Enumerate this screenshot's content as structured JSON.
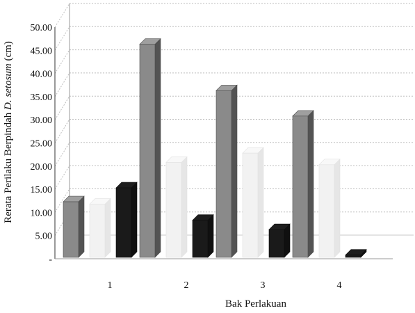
{
  "chart_data": {
    "type": "bar",
    "title": "",
    "xlabel": "Bak Perlakuan",
    "ylabel": {
      "prefix": "Rerata Perilaku Berpindah ",
      "species": "D. setosum",
      "suffix": " (cm)"
    },
    "categories": [
      "1",
      "2",
      "3",
      "4"
    ],
    "ylim": [
      0,
      50
    ],
    "yticks": [
      0,
      5,
      10,
      15,
      20,
      25,
      30,
      35,
      40,
      45,
      50
    ],
    "ytick_labels": [
      "-",
      "5.00",
      "10.00",
      "15.00",
      "20.00",
      "25.00",
      "30.00",
      "35.00",
      "40.00",
      "45.00",
      "50.00"
    ],
    "grid": true,
    "legend": "none",
    "series": [
      {
        "color": "#8a8a8a",
        "values": [
          12,
          46,
          36,
          30.5
        ]
      },
      {
        "color": "#f2f2f2",
        "values": [
          11.5,
          20.5,
          22.5,
          20
        ]
      },
      {
        "color": "#1a1a1a",
        "values": [
          15,
          8,
          6,
          0.5
        ]
      }
    ]
  }
}
